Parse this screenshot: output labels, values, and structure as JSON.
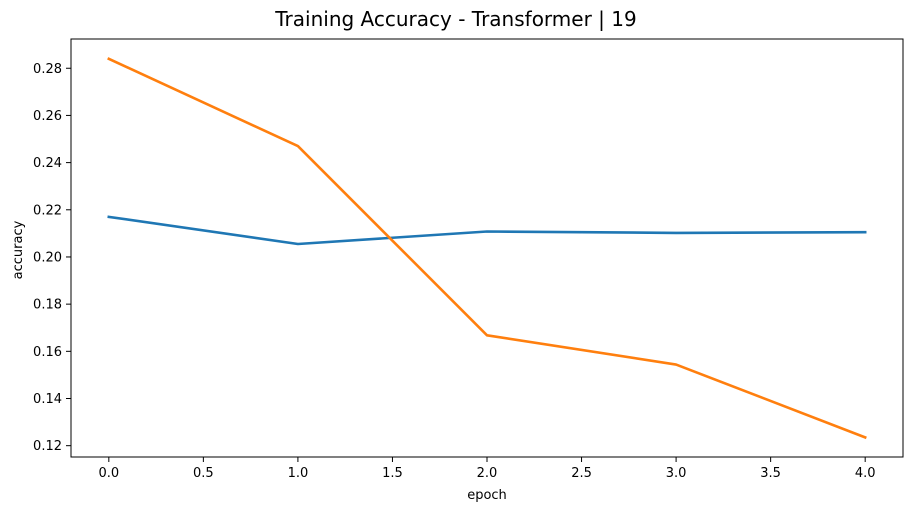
{
  "chart_data": {
    "type": "line",
    "title": "Training Accuracy - Transformer | 19",
    "xlabel": "epoch",
    "ylabel": "accuracy",
    "x": [
      0,
      1,
      2,
      3,
      4
    ],
    "xlim": [
      -0.2,
      4.2
    ],
    "ylim": [
      0.1152,
      0.2924
    ],
    "xticks": [
      0.0,
      0.5,
      1.0,
      1.5,
      2.0,
      2.5,
      3.0,
      3.5,
      4.0
    ],
    "xtick_labels": [
      "0.0",
      "0.5",
      "1.0",
      "1.5",
      "2.0",
      "2.5",
      "3.0",
      "3.5",
      "4.0"
    ],
    "yticks": [
      0.12,
      0.14,
      0.16,
      0.18,
      0.2,
      0.22,
      0.24,
      0.26,
      0.28
    ],
    "ytick_labels": [
      "0.12",
      "0.14",
      "0.16",
      "0.18",
      "0.20",
      "0.22",
      "0.24",
      "0.26",
      "0.28"
    ],
    "grid": false,
    "legend": "none",
    "series": [
      {
        "color": "#1f77b4",
        "values": [
          0.217,
          0.2055,
          0.2108,
          0.2102,
          0.2105
        ]
      },
      {
        "color": "#ff7f0e",
        "values": [
          0.284,
          0.247,
          0.1668,
          0.1544,
          0.1235
        ]
      }
    ]
  }
}
